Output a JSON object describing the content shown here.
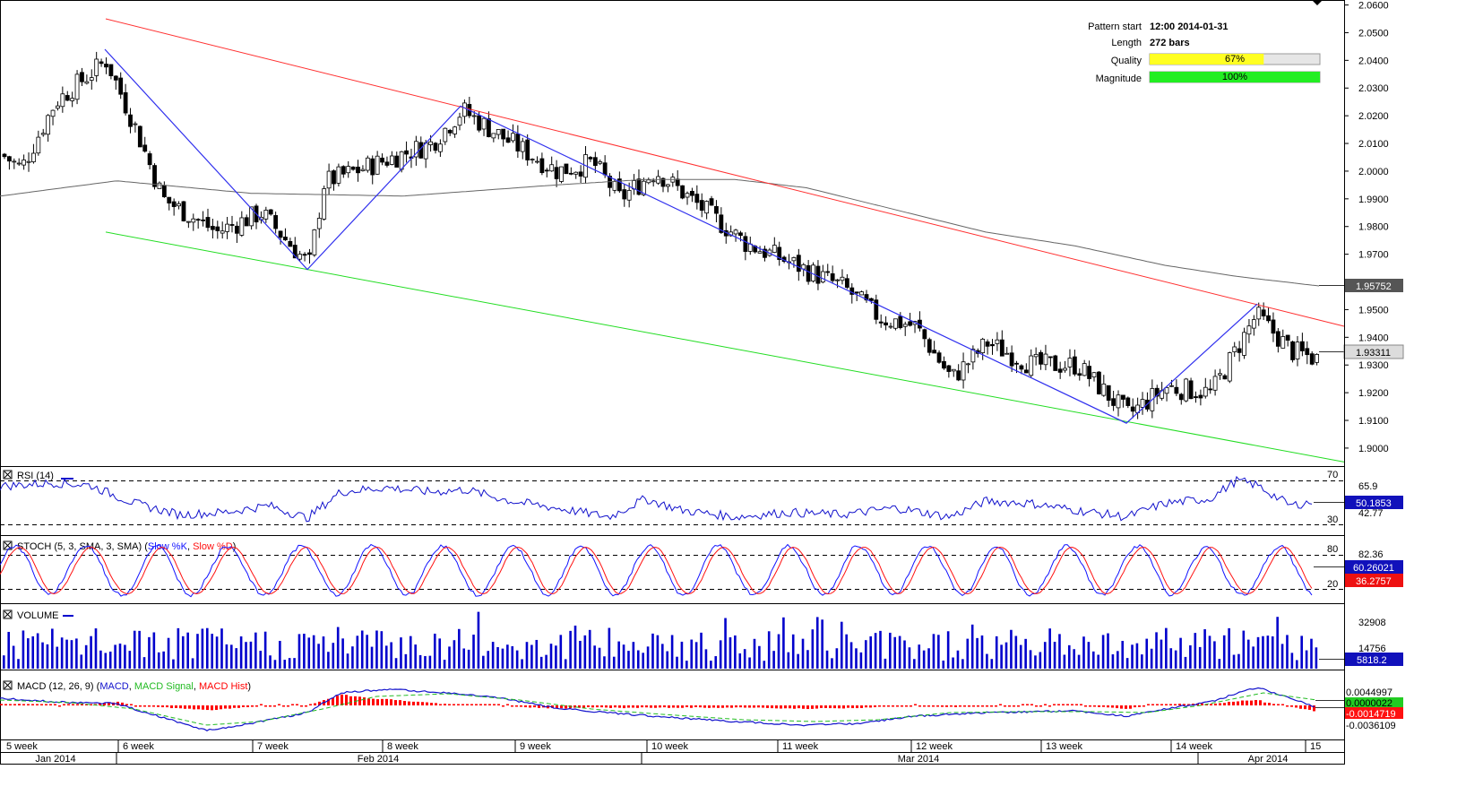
{
  "info": {
    "pattern_start_label": "Pattern start",
    "pattern_start_value": "12:00 2014-01-31",
    "length_label": "Length",
    "length_value": "272 bars",
    "quality_label": "Quality",
    "quality_value": "67%",
    "quality_fraction": 0.67,
    "magnitude_label": "Magnitude",
    "magnitude_value": "100%",
    "magnitude_fraction": 1.0
  },
  "chart_data": {
    "type": "candlestick",
    "price_ticks": [
      "2.0600",
      "2.0500",
      "2.0400",
      "2.0300",
      "2.0200",
      "2.0100",
      "2.0000",
      "1.9900",
      "1.9800",
      "1.9700",
      "1.9600",
      "1.9500",
      "1.9400",
      "1.9300",
      "1.9200",
      "1.9100",
      "1.9000"
    ],
    "price_tick_values": [
      2.06,
      2.05,
      2.04,
      2.03,
      2.02,
      2.01,
      2.0,
      1.99,
      1.98,
      1.97,
      1.96,
      1.95,
      1.94,
      1.93,
      1.92,
      1.91,
      1.9
    ],
    "ylim": [
      1.8935,
      2.0605
    ],
    "bars": 272,
    "price_path": [
      [
        0,
        2.006
      ],
      [
        22,
        2.001
      ],
      [
        60,
        2.025
      ],
      [
        117,
        2.04
      ],
      [
        150,
        2.015
      ],
      [
        180,
        1.99
      ],
      [
        240,
        1.978
      ],
      [
        290,
        1.985
      ],
      [
        343,
        1.966
      ],
      [
        360,
        1.996
      ],
      [
        420,
        2.003
      ],
      [
        480,
        2.01
      ],
      [
        514,
        2.022
      ],
      [
        560,
        2.012
      ],
      [
        620,
        2.0
      ],
      [
        660,
        2.003
      ],
      [
        690,
        1.99
      ],
      [
        730,
        2.0
      ],
      [
        780,
        1.987
      ],
      [
        830,
        1.974
      ],
      [
        880,
        1.967
      ],
      [
        940,
        1.958
      ],
      [
        980,
        1.947
      ],
      [
        1020,
        1.944
      ],
      [
        1060,
        1.925
      ],
      [
        1100,
        1.938
      ],
      [
        1150,
        1.93
      ],
      [
        1200,
        1.93
      ],
      [
        1257,
        1.912
      ],
      [
        1300,
        1.922
      ],
      [
        1350,
        1.92
      ],
      [
        1400,
        1.948
      ],
      [
        1440,
        1.935
      ],
      [
        1470,
        1.932
      ]
    ],
    "current_price": "1.93311",
    "sma_label": "1.95752",
    "sma_path": [
      [
        0,
        1.991
      ],
      [
        130,
        1.9965
      ],
      [
        280,
        1.992
      ],
      [
        450,
        1.991
      ],
      [
        620,
        1.995
      ],
      [
        720,
        1.997
      ],
      [
        820,
        1.997
      ],
      [
        900,
        1.994
      ],
      [
        1000,
        1.986
      ],
      [
        1100,
        1.978
      ],
      [
        1200,
        1.973
      ],
      [
        1300,
        1.966
      ],
      [
        1380,
        1.962
      ],
      [
        1460,
        1.959
      ],
      [
        1500,
        1.9575
      ]
    ],
    "pattern": {
      "upper_channel": [
        [
          118,
          2.055
        ],
        [
          1500,
          1.944
        ]
      ],
      "lower_channel": [
        [
          118,
          1.978
        ],
        [
          1500,
          1.895
        ]
      ],
      "zigzag": [
        [
          117,
          2.044
        ],
        [
          343,
          1.9645
        ],
        [
          514,
          2.0235
        ],
        [
          1257,
          1.909
        ],
        [
          1403,
          1.952
        ]
      ]
    },
    "x_week_labels": [
      "5 week",
      "6 week",
      "7 week",
      "8 week",
      "9 week",
      "10 week",
      "11 week",
      "12 week",
      "13 week",
      "14 week",
      "15"
    ],
    "x_week_positions": [
      5,
      135,
      285,
      430,
      578,
      725,
      871,
      1020,
      1165,
      1310,
      1460
    ],
    "x_month_labels": [
      "Jan 2014",
      "Feb 2014",
      "Mar 2014",
      "Apr 2014"
    ],
    "x_month_positions": [
      62,
      422,
      1025,
      1415
    ],
    "rsi": {
      "title": "RSI (14)",
      "levels": [
        "70",
        "30"
      ],
      "right_labels": [
        "65.9",
        "42.77"
      ],
      "current": "50.1853",
      "ylim": [
        20,
        80
      ],
      "path": [
        [
          0,
          63
        ],
        [
          60,
          66
        ],
        [
          100,
          64
        ],
        [
          150,
          48
        ],
        [
          200,
          38
        ],
        [
          250,
          40
        ],
        [
          300,
          46
        ],
        [
          343,
          35
        ],
        [
          380,
          58
        ],
        [
          430,
          62
        ],
        [
          480,
          58
        ],
        [
          520,
          60
        ],
        [
          570,
          50
        ],
        [
          620,
          44
        ],
        [
          680,
          36
        ],
        [
          720,
          52
        ],
        [
          760,
          42
        ],
        [
          820,
          36
        ],
        [
          880,
          40
        ],
        [
          940,
          38
        ],
        [
          1000,
          44
        ],
        [
          1060,
          36
        ],
        [
          1100,
          50
        ],
        [
          1150,
          48
        ],
        [
          1200,
          42
        ],
        [
          1257,
          36
        ],
        [
          1300,
          48
        ],
        [
          1350,
          52
        ],
        [
          1380,
          68
        ],
        [
          1403,
          64
        ],
        [
          1440,
          46
        ],
        [
          1470,
          50
        ]
      ]
    },
    "stoch": {
      "title": "STOCH (5, 3, SMA, 3, SMA)",
      "legend_k": "Slow %K",
      "legend_d": "Slow %D",
      "levels": [
        "80",
        "20"
      ],
      "right_label": "82.36",
      "current_k": "60.26021",
      "current_d": "36.2757"
    },
    "volume": {
      "title": "VOLUME",
      "ticks": [
        "32908",
        "14756"
      ],
      "current": "5818.2"
    },
    "macd": {
      "title": "MACD (12, 26, 9)",
      "legend_macd": "MACD",
      "legend_signal": "MACD Signal",
      "legend_hist": "MACD Hist",
      "right_labels": [
        "0.0044997",
        "0.0000022",
        "-0.0014719",
        "-0.0036109"
      ],
      "current": "-0.0014719"
    }
  },
  "colors": {
    "upper_channel": "#ff3030",
    "lower_channel": "#22dd22",
    "zigzag": "#3030ee",
    "sma": "#666666",
    "quality_bar": "#ffff22",
    "magnitude_bar": "#22ee22",
    "bull_body": "#ffffff",
    "bear_body": "#000000",
    "rsi_line": "#1111cc",
    "stoch_k": "#1111ff",
    "stoch_d": "#ff1111",
    "volume": "#0000cc",
    "macd_line": "#1111cc",
    "macd_signal": "#22bb22",
    "macd_hist": "#ff0000"
  }
}
